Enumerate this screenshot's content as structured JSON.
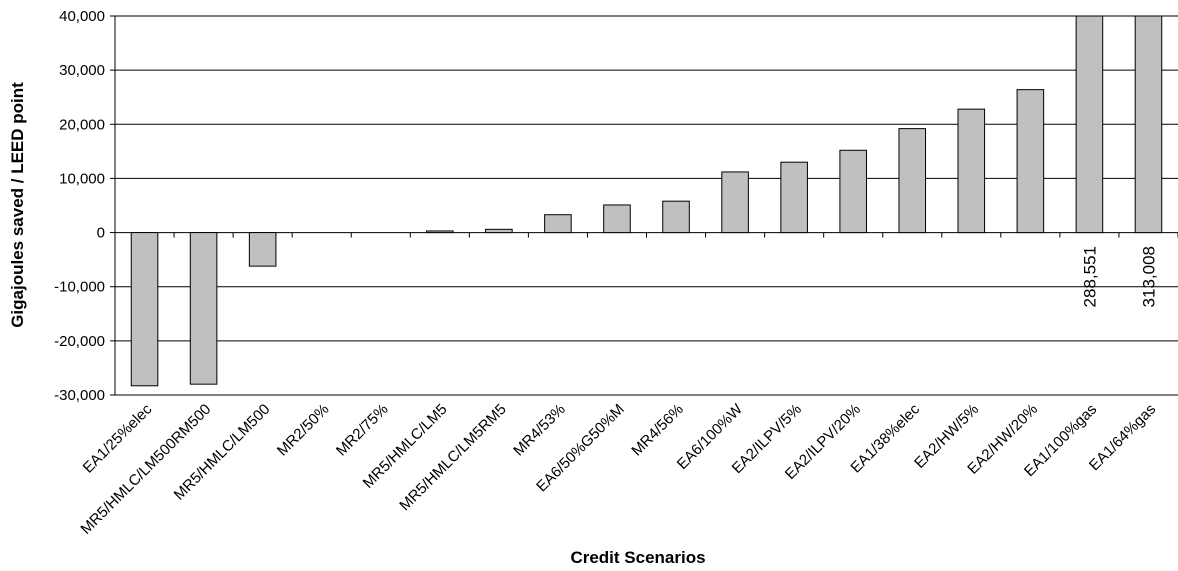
{
  "chart_data": {
    "type": "bar",
    "xlabel": "Credit Scenarios",
    "ylabel": "Gigajoules saved / LEED point",
    "ylim": [
      -30000,
      40000
    ],
    "yticks": [
      -30000,
      -20000,
      -10000,
      0,
      10000,
      20000,
      30000,
      40000
    ],
    "ytick_labels": [
      "-30,000",
      "-20,000",
      "-10,000",
      "0",
      "10,000",
      "20,000",
      "30,000",
      "40,000"
    ],
    "grid": true,
    "bar_color": "#c0c0c0",
    "categories": [
      "EA1/25%elec",
      "MR5/HMLC/LM500RM500",
      "MR5/HMLC/LM500",
      "MR2/50%",
      "MR2/75%",
      "MR5/HMLC/LM5",
      "MR5/HMLC/LM5RM5",
      "MR4/53%",
      "EA6/50%G50%M",
      "MR4/56%",
      "EA6/100%W",
      "EA2/ILPV/5%",
      "EA2/ILPV/20%",
      "EA1/38%elec",
      "EA2/HW/5%",
      "EA2/HW/20%",
      "EA1/100%gas",
      "EA1/64%gas"
    ],
    "values": [
      -28300,
      -28000,
      -6200,
      0,
      0,
      300,
      600,
      3300,
      5100,
      5800,
      11200,
      13000,
      15200,
      19200,
      22800,
      26400,
      288551,
      313008
    ],
    "data_labels": [
      "",
      "",
      "",
      "",
      "",
      "",
      "",
      "",
      "",
      "",
      "",
      "",
      "",
      "",
      "",
      "",
      "288,551",
      "313,008"
    ]
  }
}
